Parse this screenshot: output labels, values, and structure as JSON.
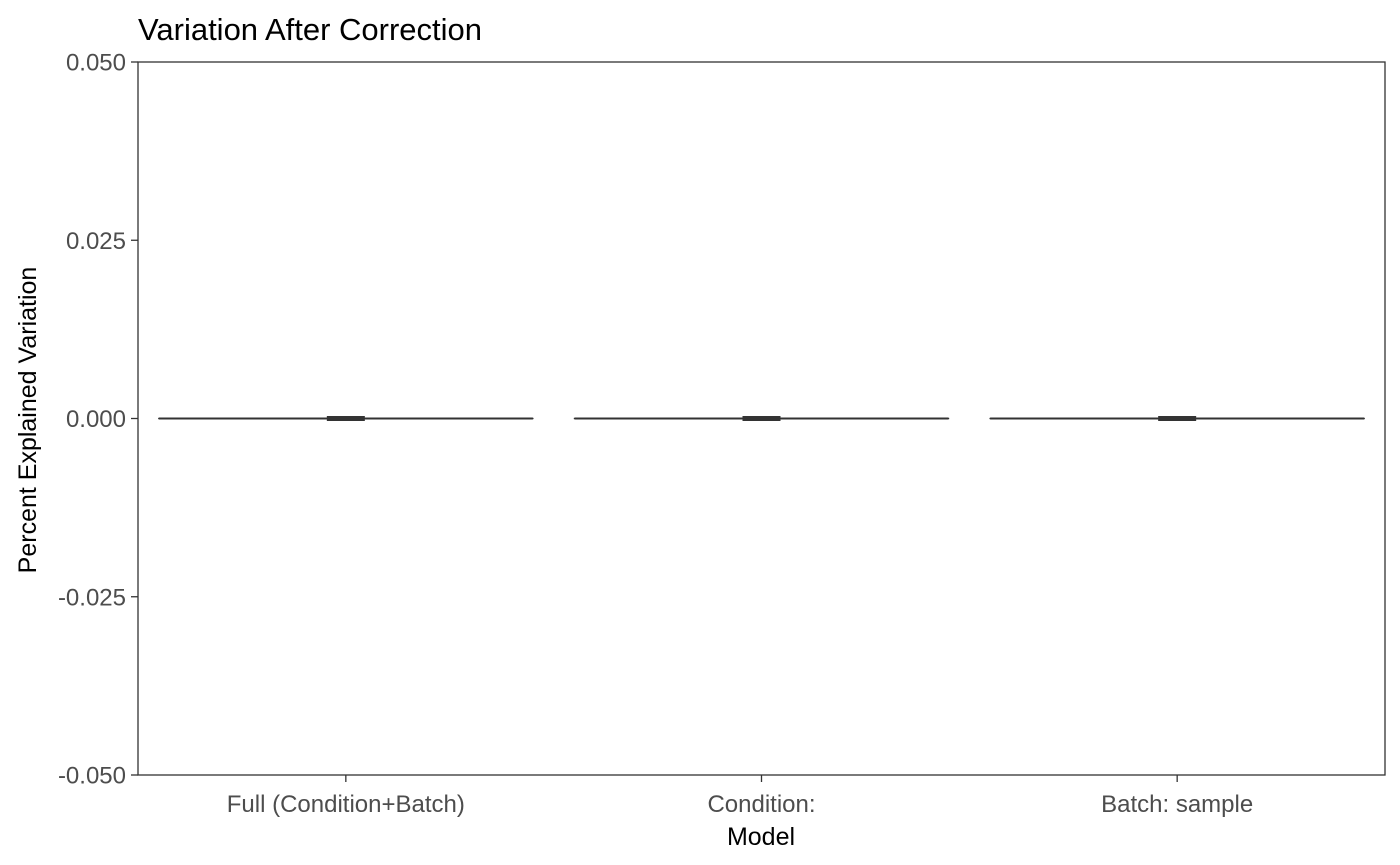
{
  "chart_data": {
    "type": "boxplot",
    "title": "Variation After Correction",
    "xlabel": "Model",
    "ylabel": "Percent Explained Variation",
    "ylim": [
      -0.05,
      0.05
    ],
    "y_ticks": [
      {
        "value": -0.05,
        "label": "-0.050"
      },
      {
        "value": -0.025,
        "label": "-0.025"
      },
      {
        "value": 0.0,
        "label": "0.000"
      },
      {
        "value": 0.025,
        "label": "0.025"
      },
      {
        "value": 0.05,
        "label": "0.050"
      }
    ],
    "categories": [
      "Full (Condition+Batch)",
      "Condition:",
      "Batch: sample"
    ],
    "series": [
      {
        "values": [
          {
            "min": 0.0,
            "q1": 0.0,
            "median": 0.0,
            "q3": 0.0,
            "max": 0.0
          },
          {
            "min": 0.0,
            "q1": 0.0,
            "median": 0.0,
            "q3": 0.0,
            "max": 0.0
          },
          {
            "min": 0.0,
            "q1": 0.0,
            "median": 0.0,
            "q3": 0.0,
            "max": 0.0
          }
        ]
      }
    ],
    "grid": false,
    "legend": "none",
    "colors": {
      "axis": "#333333",
      "box": "#333333",
      "tick_text": "#4d4d4d",
      "title_text": "#000000"
    }
  }
}
